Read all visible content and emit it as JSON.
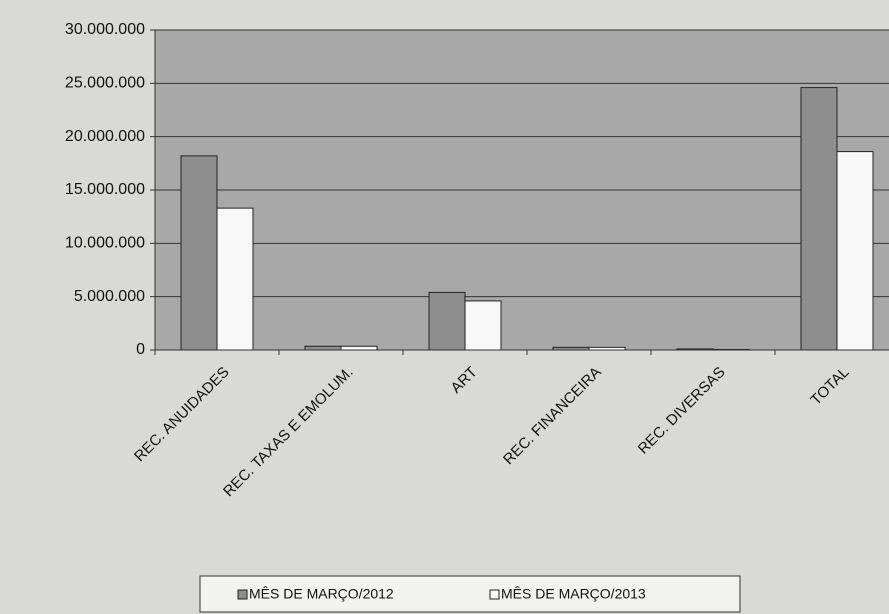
{
  "chart_data": {
    "type": "bar",
    "categories": [
      "REC. ANUIDADES",
      "REC. TAXAS E EMOLUM.",
      "ART",
      "REC. FINANCEIRA",
      "REC. DIVERSAS",
      "TOTAL"
    ],
    "series": [
      {
        "name": "MÊS DE MARÇO/2012",
        "color": "#8e8e8e",
        "values": [
          18200000,
          350000,
          5400000,
          250000,
          100000,
          24600000
        ]
      },
      {
        "name": "MÊS DE MARÇO/2013",
        "color": "#f8f8f8",
        "values": [
          13300000,
          350000,
          4600000,
          250000,
          50000,
          18600000
        ]
      }
    ],
    "ylim": [
      0,
      30000000
    ],
    "yticks": [
      {
        "value": 0,
        "label": "0"
      },
      {
        "value": 5000000,
        "label": "5.000.000"
      },
      {
        "value": 10000000,
        "label": "10.000.000"
      },
      {
        "value": 15000000,
        "label": "15.000.000"
      },
      {
        "value": 20000000,
        "label": "20.000.000"
      },
      {
        "value": 25000000,
        "label": "25.000.000"
      },
      {
        "value": 30000000,
        "label": "30.000.000"
      }
    ],
    "grid": true,
    "legend": "bottom"
  }
}
